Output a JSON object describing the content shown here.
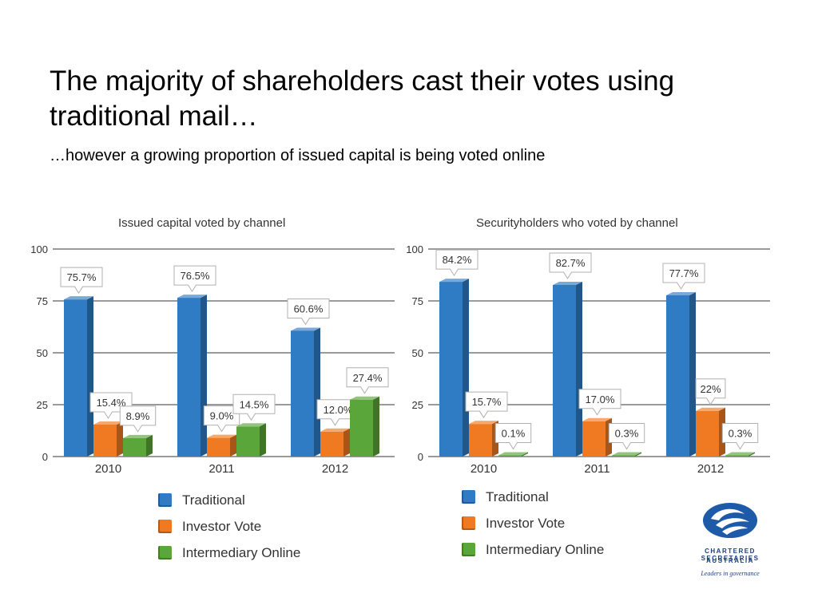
{
  "slide": {
    "title": "The majority of shareholders cast their votes using traditional mail…",
    "subtitle": "…however a growing proportion of issued capital is being voted online"
  },
  "colors": {
    "traditional": "#2f7bc4",
    "investor_vote": "#f07a22",
    "intermediary_online": "#5aa63a",
    "grid": "#9a9a9a",
    "axis_text": "#333333",
    "logo_blue": "#1d5aa8"
  },
  "chart_data": [
    {
      "type": "bar",
      "title": "Issued capital voted by channel",
      "categories": [
        "2010",
        "2011",
        "2012"
      ],
      "ylim": [
        0,
        100
      ],
      "yticks": [
        0,
        25,
        50,
        75,
        100
      ],
      "grid": true,
      "series": [
        {
          "name": "Traditional",
          "values": [
            75.7,
            76.5,
            60.6
          ],
          "labels": [
            "75.7%",
            "76.5%",
            "60.6%"
          ]
        },
        {
          "name": "Investor Vote",
          "values": [
            15.4,
            9.0,
            12.0
          ],
          "labels": [
            "15.4%",
            "9.0%",
            "12.0%"
          ]
        },
        {
          "name": "Intermediary Online",
          "values": [
            8.9,
            14.5,
            27.4
          ],
          "labels": [
            "8.9%",
            "14.5%",
            "27.4%"
          ]
        }
      ]
    },
    {
      "type": "bar",
      "title": "Securityholders who voted by channel",
      "categories": [
        "2010",
        "2011",
        "2012"
      ],
      "ylim": [
        0,
        100
      ],
      "yticks": [
        0,
        25,
        50,
        75,
        100
      ],
      "grid": true,
      "series": [
        {
          "name": "Traditional",
          "values": [
            84.2,
            82.7,
            77.7
          ],
          "labels": [
            "84.2%",
            "82.7%",
            "77.7%"
          ]
        },
        {
          "name": "Investor Vote",
          "values": [
            15.7,
            17.0,
            22
          ],
          "labels": [
            "15.7%",
            "17.0%",
            "22%"
          ]
        },
        {
          "name": "Intermediary Online",
          "values": [
            0.1,
            0.3,
            0.3
          ],
          "labels": [
            "0.1%",
            "0.3%",
            "0.3%"
          ]
        }
      ]
    }
  ],
  "legend_left": [
    {
      "label": "Traditional",
      "color_key": "traditional"
    },
    {
      "label": "Investor Vote",
      "color_key": "investor_vote"
    },
    {
      "label": "Intermediary Online",
      "color_key": "intermediary_online"
    }
  ],
  "legend_right": [
    {
      "label": "Traditional",
      "color_key": "traditional"
    },
    {
      "label": "Investor Vote",
      "color_key": "investor_vote"
    },
    {
      "label": "Intermediary Online",
      "color_key": "intermediary_online"
    }
  ],
  "logo": {
    "name_line1": "CHARTERED SECRETARIES",
    "name_line2": "AUSTRALIA",
    "tagline": "Leaders in governance"
  }
}
